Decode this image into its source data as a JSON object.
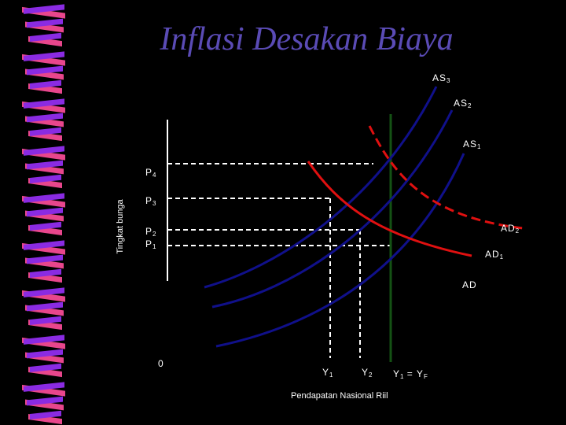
{
  "slide": {
    "title": "Inflasi Desakan Biaya",
    "y_axis_label": "Tingkat bunga",
    "x_axis_label": "Pendapatan Nasional Riil",
    "origin_label": "0"
  },
  "curve_labels": {
    "as3": {
      "base": "AS",
      "sub": "3"
    },
    "as2": {
      "base": "AS",
      "sub": "2"
    },
    "as1": {
      "base": "AS",
      "sub": "1"
    },
    "ad2": {
      "base": "AD",
      "sub": "2"
    },
    "ad1": {
      "base": "AD",
      "sub": "1"
    },
    "ad": {
      "base": "AD",
      "sub": ""
    }
  },
  "price_labels": {
    "p4": {
      "base": "P",
      "sub": "4"
    },
    "p3": {
      "base": "P",
      "sub": "3"
    },
    "p2": {
      "base": "P",
      "sub": "2"
    },
    "p1": {
      "base": "P",
      "sub": "1"
    }
  },
  "output_labels": {
    "y1": {
      "base": "Y",
      "sub": "1"
    },
    "y2": {
      "base": "Y",
      "sub": "2"
    },
    "yf": {
      "base1": "Y",
      "sub1": "1",
      "mid": " = Y",
      "sub2": "F"
    }
  },
  "colors": {
    "background": "#000000",
    "title": "#5a4bb5",
    "aggregate_supply": "#10108a",
    "aggregate_demand": "#e01010",
    "full_employment_line": "#145214",
    "guide_lines": "#ffffff",
    "ribbon_pink": "#e8468c",
    "ribbon_purple": "#8a2be2"
  }
}
